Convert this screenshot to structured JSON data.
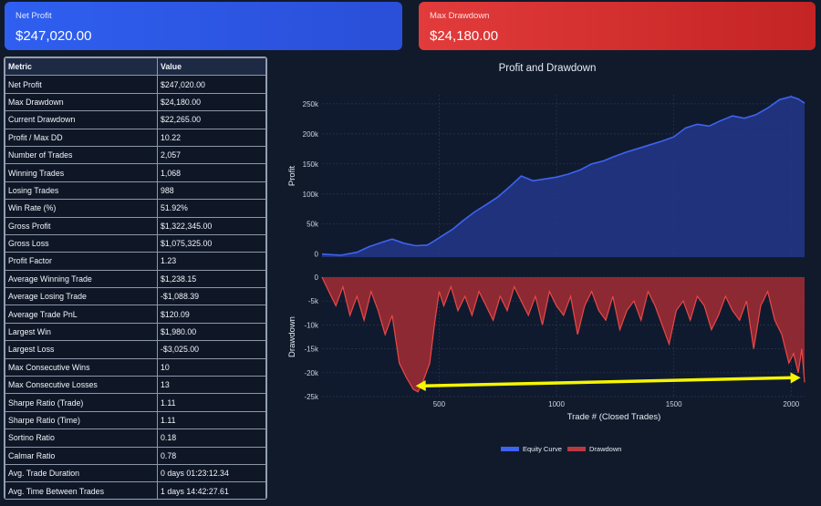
{
  "cards": {
    "net_profit": {
      "label": "Net Profit",
      "value": "$247,020.00"
    },
    "max_drawdown": {
      "label": "Max Drawdown",
      "value": "$24,180.00"
    }
  },
  "metrics_table": {
    "headers": [
      "Metric",
      "Value"
    ],
    "rows": [
      [
        "Net Profit",
        "$247,020.00"
      ],
      [
        "Max Drawdown",
        "$24,180.00"
      ],
      [
        "Current Drawdown",
        "$22,265.00"
      ],
      [
        "Profit / Max DD",
        "10.22"
      ],
      [
        "Number of Trades",
        "2,057"
      ],
      [
        "Winning Trades",
        "1,068"
      ],
      [
        "Losing Trades",
        "988"
      ],
      [
        "Win Rate (%)",
        "51.92%"
      ],
      [
        "Gross Profit",
        "$1,322,345.00"
      ],
      [
        "Gross Loss",
        "$1,075,325.00"
      ],
      [
        "Profit Factor",
        "1.23"
      ],
      [
        "Average Winning Trade",
        "$1,238.15"
      ],
      [
        "Average Losing Trade",
        "-$1,088.39"
      ],
      [
        "Average Trade PnL",
        "$120.09"
      ],
      [
        "Largest Win",
        "$1,980.00"
      ],
      [
        "Largest Loss",
        "-$3,025.00"
      ],
      [
        "Max Consecutive Wins",
        "10"
      ],
      [
        "Max Consecutive Losses",
        "13"
      ],
      [
        "Sharpe Ratio (Trade)",
        "1.11"
      ],
      [
        "Sharpe Ratio (Time)",
        "1.11"
      ],
      [
        "Sortino Ratio",
        "0.18"
      ],
      [
        "Calmar Ratio",
        "0.78"
      ],
      [
        "Avg. Trade Duration",
        "0 days 01:23:12.34"
      ],
      [
        "Avg. Time Between Trades",
        "1 days 14:42:27.61"
      ]
    ]
  },
  "colors": {
    "equity": "#3d63f2",
    "drawdown": "#e84848",
    "arrow": "#f5f500",
    "grid": "#2a3650"
  },
  "chart_data": {
    "type": "area",
    "title": "Profit and Drawdown",
    "xlabel": "Trade # (Closed Trades)",
    "x_ticks": [
      500,
      1000,
      1500,
      2000
    ],
    "x_range": [
      1,
      2057
    ],
    "legend": {
      "placement": "bottom-center",
      "entries": [
        "Equity Curve",
        "Drawdown"
      ]
    },
    "grid": true,
    "panels": [
      {
        "name": "equity",
        "ylabel": "Profit",
        "ylim": [
          -5000,
          265000
        ],
        "y_ticks": [
          0,
          50000,
          100000,
          150000,
          200000,
          250000
        ],
        "y_tick_labels": [
          "0",
          "50k",
          "100k",
          "150k",
          "200k",
          "250k"
        ],
        "series": [
          {
            "name": "Equity Curve",
            "x": [
              1,
              80,
              150,
              200,
              260,
              300,
              350,
              400,
              450,
              480,
              520,
              560,
              600,
              650,
              700,
              750,
              800,
              850,
              900,
              950,
              1000,
              1050,
              1100,
              1150,
              1200,
              1250,
              1300,
              1350,
              1400,
              1450,
              1500,
              1550,
              1600,
              1650,
              1700,
              1750,
              1800,
              1850,
              1900,
              1950,
              2000,
              2030,
              2057
            ],
            "y": [
              0,
              -2000,
              3000,
              12000,
              20000,
              25000,
              18000,
              14000,
              15000,
              22000,
              32000,
              42000,
              55000,
              70000,
              82000,
              95000,
              112000,
              130000,
              122000,
              125000,
              128000,
              133000,
              140000,
              150000,
              155000,
              163000,
              170000,
              176000,
              182000,
              188000,
              195000,
              210000,
              216000,
              213000,
              222000,
              230000,
              226000,
              232000,
              243000,
              257000,
              262000,
              258000,
              251000
            ]
          }
        ]
      },
      {
        "name": "drawdown",
        "ylabel": "Drawdown",
        "ylim": [
          -25000,
          0
        ],
        "y_ticks": [
          0,
          -5000,
          -10000,
          -15000,
          -20000,
          -25000
        ],
        "y_tick_labels": [
          "0",
          "-5k",
          "-10k",
          "-15k",
          "-20k",
          "-25k"
        ],
        "series": [
          {
            "name": "Drawdown",
            "x": [
              1,
              30,
              60,
              90,
              120,
              150,
              180,
              210,
              240,
              270,
              300,
              330,
              360,
              390,
              410,
              430,
              460,
              480,
              500,
              520,
              550,
              580,
              610,
              640,
              670,
              700,
              730,
              760,
              790,
              820,
              850,
              880,
              910,
              940,
              970,
              1000,
              1030,
              1060,
              1090,
              1120,
              1150,
              1180,
              1210,
              1240,
              1270,
              1300,
              1330,
              1360,
              1390,
              1420,
              1450,
              1480,
              1510,
              1540,
              1570,
              1600,
              1630,
              1660,
              1690,
              1720,
              1750,
              1780,
              1810,
              1840,
              1870,
              1900,
              1930,
              1960,
              1990,
              2010,
              2030,
              2045,
              2057
            ],
            "y": [
              0,
              -3000,
              -6000,
              -2000,
              -8000,
              -4000,
              -9000,
              -3000,
              -7000,
              -12000,
              -8000,
              -18000,
              -21000,
              -23500,
              -24000,
              -22000,
              -18000,
              -10000,
              -3000,
              -6000,
              -2000,
              -7000,
              -4000,
              -8000,
              -3000,
              -6000,
              -9000,
              -4000,
              -7000,
              -2000,
              -5000,
              -8000,
              -4000,
              -10000,
              -3000,
              -6000,
              -8000,
              -4000,
              -12000,
              -6000,
              -3000,
              -7000,
              -9000,
              -4000,
              -11000,
              -7000,
              -5000,
              -9000,
              -3000,
              -6000,
              -10000,
              -14000,
              -7000,
              -5000,
              -9000,
              -4000,
              -6000,
              -11000,
              -8000,
              -4000,
              -7000,
              -9000,
              -5000,
              -15000,
              -6000,
              -3000,
              -9000,
              -12000,
              -18000,
              -16000,
              -20000,
              -15000,
              -22000
            ]
          }
        ],
        "annotation": {
          "type": "double-arrow",
          "x_from": 400,
          "x_to": 2040,
          "y": -22000
        }
      }
    ]
  }
}
